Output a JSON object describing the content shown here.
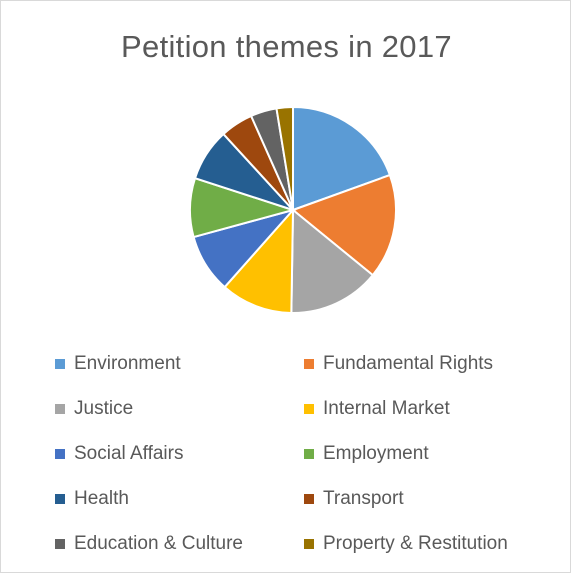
{
  "chart_data": {
    "type": "pie",
    "title": "Petition themes in 2017",
    "legend_position": "bottom",
    "categories": [
      "Environment",
      "Fundamental Rights",
      "Justice",
      "Internal Market",
      "Social Affairs",
      "Employment",
      "Health",
      "Transport",
      "Education & Culture",
      "Property & Restitution"
    ],
    "values": [
      19,
      16,
      14,
      11,
      9,
      9,
      8,
      5,
      4,
      2.5
    ],
    "colors": [
      "#5b9bd5",
      "#ed7d31",
      "#a5a5a5",
      "#ffc000",
      "#4472c4",
      "#70ad47",
      "#255e91",
      "#9e480e",
      "#636363",
      "#997300"
    ]
  }
}
